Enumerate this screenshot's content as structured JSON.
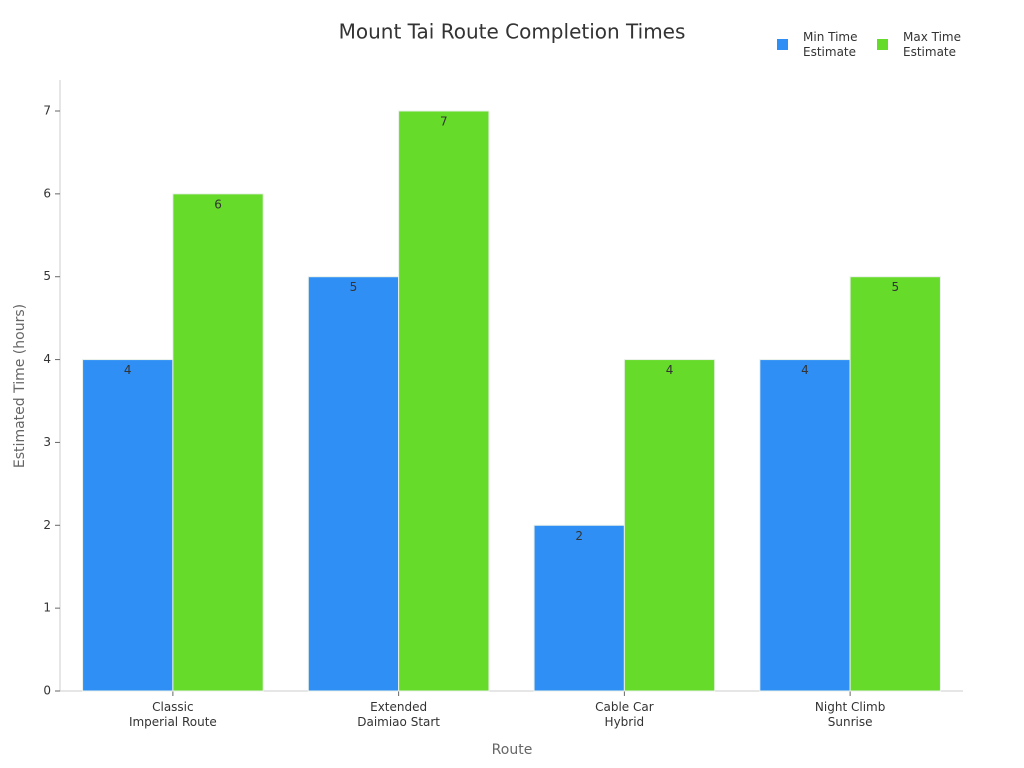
{
  "chart_data": {
    "type": "bar",
    "title": "Mount Tai Route Completion Times",
    "x_label": "Route",
    "y_label": "Estimated Time (hours)",
    "categories": [
      "Classic\nImperial Route",
      "Extended\nDaimiao Start",
      "Cable Car\nHybrid",
      "Night Climb\nSunrise"
    ],
    "series": [
      {
        "name": "Min Time Estimate",
        "color": "#2f8ff5",
        "values": [
          4,
          5,
          2,
          4
        ]
      },
      {
        "name": "Max Time Estimate",
        "color": "#66db29",
        "values": [
          6,
          7,
          4,
          5
        ]
      }
    ],
    "ylim": [
      0,
      7
    ],
    "yticks": [
      0,
      1,
      2,
      3,
      4,
      5,
      6,
      7
    ],
    "grid": false,
    "legend": "top-right",
    "value_labels_shown": true
  }
}
